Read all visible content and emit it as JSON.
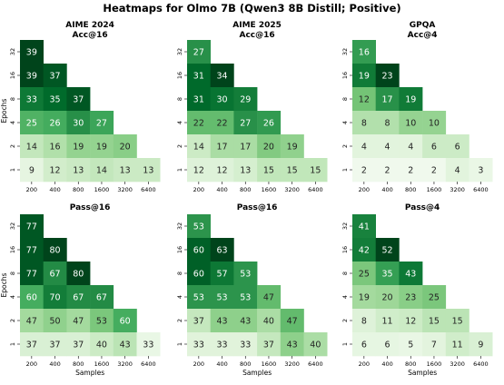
{
  "figure": {
    "suptitle": "Heatmaps for Olmo 7B (Qwen3 8B Distill; Positive)"
  },
  "chart_data": [
    {
      "type": "heatmap",
      "title": "AIME 2024\nAcc@16",
      "xlabel": "",
      "ylabel": "Epochs",
      "x_categories": [
        "200",
        "400",
        "800",
        "1600",
        "3200",
        "6400"
      ],
      "y_categories": [
        "32",
        "16",
        "8",
        "4",
        "2",
        "1"
      ],
      "values": [
        [
          39,
          null,
          null,
          null,
          null,
          null
        ],
        [
          39,
          37,
          null,
          null,
          null,
          null
        ],
        [
          33,
          35,
          37,
          null,
          null,
          null
        ],
        [
          25,
          26,
          30,
          27,
          null,
          null
        ],
        [
          14,
          16,
          19,
          19,
          20,
          null
        ],
        [
          9,
          12,
          13,
          14,
          13,
          13
        ]
      ],
      "colormap": "Greens",
      "vmin": 5,
      "vmax": 39
    },
    {
      "type": "heatmap",
      "title": "AIME 2025\nAcc@16",
      "xlabel": "",
      "ylabel": "",
      "x_categories": [
        "200",
        "400",
        "800",
        "1600",
        "3200",
        "6400"
      ],
      "y_categories": [
        "32",
        "16",
        "8",
        "4",
        "2",
        "1"
      ],
      "values": [
        [
          27,
          null,
          null,
          null,
          null,
          null
        ],
        [
          31,
          34,
          null,
          null,
          null,
          null
        ],
        [
          31,
          30,
          29,
          null,
          null,
          null
        ],
        [
          22,
          22,
          27,
          26,
          null,
          null
        ],
        [
          14,
          17,
          17,
          20,
          19,
          null
        ],
        [
          12,
          12,
          13,
          15,
          15,
          15
        ]
      ],
      "colormap": "Greens",
      "vmin": 8,
      "vmax": 34
    },
    {
      "type": "heatmap",
      "title": "GPQA\nAcc@4",
      "xlabel": "",
      "ylabel": "",
      "x_categories": [
        "200",
        "400",
        "800",
        "1600",
        "3200",
        "6400"
      ],
      "y_categories": [
        "32",
        "16",
        "8",
        "4",
        "2",
        "1"
      ],
      "values": [
        [
          16,
          null,
          null,
          null,
          null,
          null
        ],
        [
          19,
          23,
          null,
          null,
          null,
          null
        ],
        [
          12,
          17,
          19,
          null,
          null,
          null
        ],
        [
          8,
          8,
          10,
          10,
          null,
          null
        ],
        [
          4,
          4,
          4,
          6,
          6,
          null
        ],
        [
          2,
          2,
          2,
          2,
          4,
          3
        ]
      ],
      "colormap": "Greens",
      "vmin": 1,
      "vmax": 23
    },
    {
      "type": "heatmap",
      "title": "Pass@16",
      "xlabel": "Samples",
      "ylabel": "Epochs",
      "x_categories": [
        "200",
        "400",
        "800",
        "1600",
        "3200",
        "6400"
      ],
      "y_categories": [
        "32",
        "16",
        "8",
        "4",
        "2",
        "1"
      ],
      "values": [
        [
          77,
          null,
          null,
          null,
          null,
          null
        ],
        [
          77,
          80,
          null,
          null,
          null,
          null
        ],
        [
          77,
          67,
          80,
          null,
          null,
          null
        ],
        [
          60,
          70,
          67,
          67,
          null,
          null
        ],
        [
          47,
          50,
          47,
          53,
          60,
          null
        ],
        [
          37,
          37,
          37,
          40,
          43,
          33
        ]
      ],
      "colormap": "Greens",
      "vmin": 28,
      "vmax": 80
    },
    {
      "type": "heatmap",
      "title": "Pass@16",
      "xlabel": "Samples",
      "ylabel": "",
      "x_categories": [
        "200",
        "400",
        "800",
        "1600",
        "3200",
        "6400"
      ],
      "y_categories": [
        "32",
        "16",
        "8",
        "4",
        "2",
        "1"
      ],
      "values": [
        [
          53,
          null,
          null,
          null,
          null,
          null
        ],
        [
          60,
          63,
          null,
          null,
          null,
          null
        ],
        [
          60,
          57,
          53,
          null,
          null,
          null
        ],
        [
          53,
          53,
          53,
          47,
          null,
          null
        ],
        [
          37,
          43,
          43,
          40,
          47,
          null
        ],
        [
          33,
          33,
          33,
          37,
          43,
          40
        ]
      ],
      "colormap": "Greens",
      "vmin": 28,
      "vmax": 63
    },
    {
      "type": "heatmap",
      "title": "Pass@4",
      "xlabel": "Samples",
      "ylabel": "",
      "x_categories": [
        "200",
        "400",
        "800",
        "1600",
        "3200",
        "6400"
      ],
      "y_categories": [
        "32",
        "16",
        "8",
        "4",
        "2",
        "1"
      ],
      "values": [
        [
          41,
          null,
          null,
          null,
          null,
          null
        ],
        [
          42,
          52,
          null,
          null,
          null,
          null
        ],
        [
          25,
          35,
          43,
          null,
          null,
          null
        ],
        [
          19,
          20,
          23,
          25,
          null,
          null
        ],
        [
          8,
          11,
          12,
          15,
          15,
          null
        ],
        [
          6,
          6,
          5,
          7,
          11,
          9
        ]
      ],
      "colormap": "Greens",
      "vmin": 0,
      "vmax": 52
    }
  ],
  "colors": {
    "text_dark": "#222222",
    "text_light": "#ffffff",
    "background": "#ffffff"
  }
}
